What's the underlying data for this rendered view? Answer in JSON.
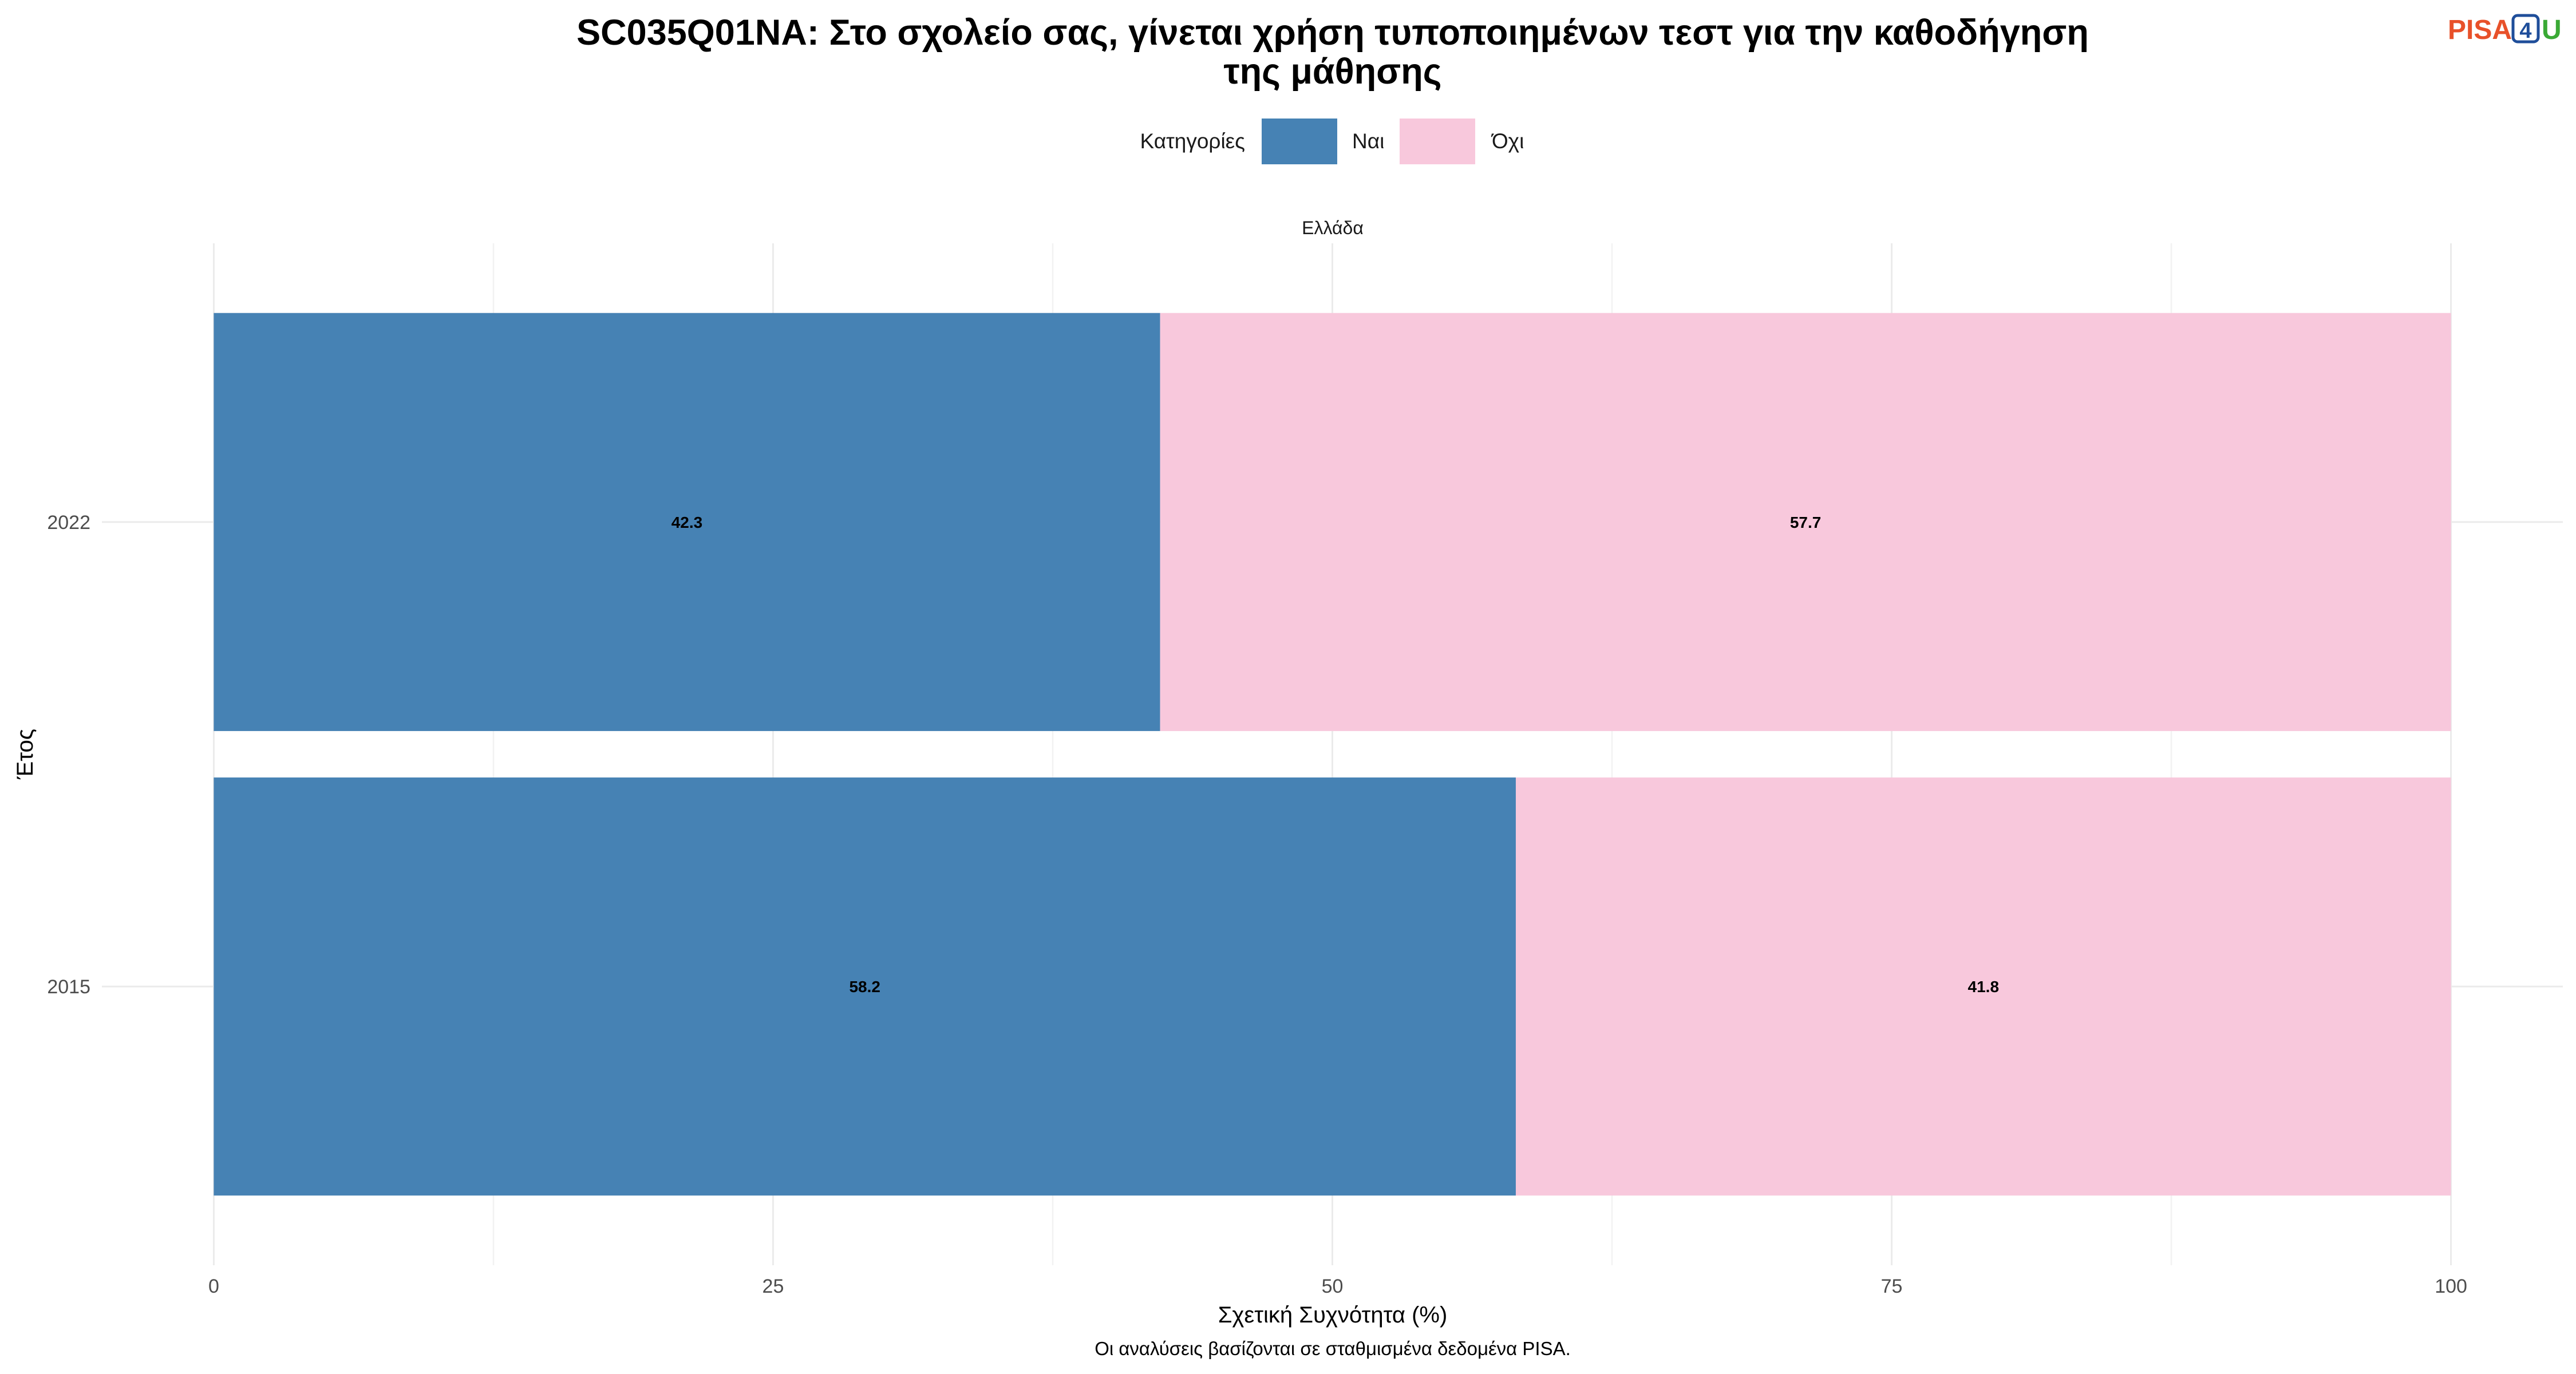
{
  "logo": {
    "parts": [
      "PISA",
      "4",
      "U"
    ],
    "colors": [
      "#E8512A",
      "#1F4E9A",
      "#3AA935"
    ]
  },
  "chart_data": {
    "type": "bar",
    "orientation": "horizontal",
    "stacked": true,
    "title": [
      "SC035Q01NA: Στο σχολείο σας, γίνεται χρήση τυποποιημένων τεστ για την καθοδήγηση",
      "της μάθησης"
    ],
    "legend_title": "Κατηγορίες",
    "legend_position": "top",
    "facet": "Ελλάδα",
    "categories": [
      "2022",
      "2015"
    ],
    "series": [
      {
        "name": "Ναι",
        "values": [
          42.3,
          58.2
        ],
        "color": "#4682B4"
      },
      {
        "name": "Όχι",
        "values": [
          57.7,
          41.8
        ],
        "color": "#F8C8DC"
      }
    ],
    "xlabel": "Σχετική Συχνότητα (%)",
    "ylabel": "Έτος",
    "xlim": [
      0,
      100
    ],
    "xticks": [
      0,
      25,
      50,
      75,
      100
    ],
    "grid": true,
    "caption": "Οι αναλύσεις βασίζονται σε σταθμισμένα δεδομένα PISA."
  }
}
